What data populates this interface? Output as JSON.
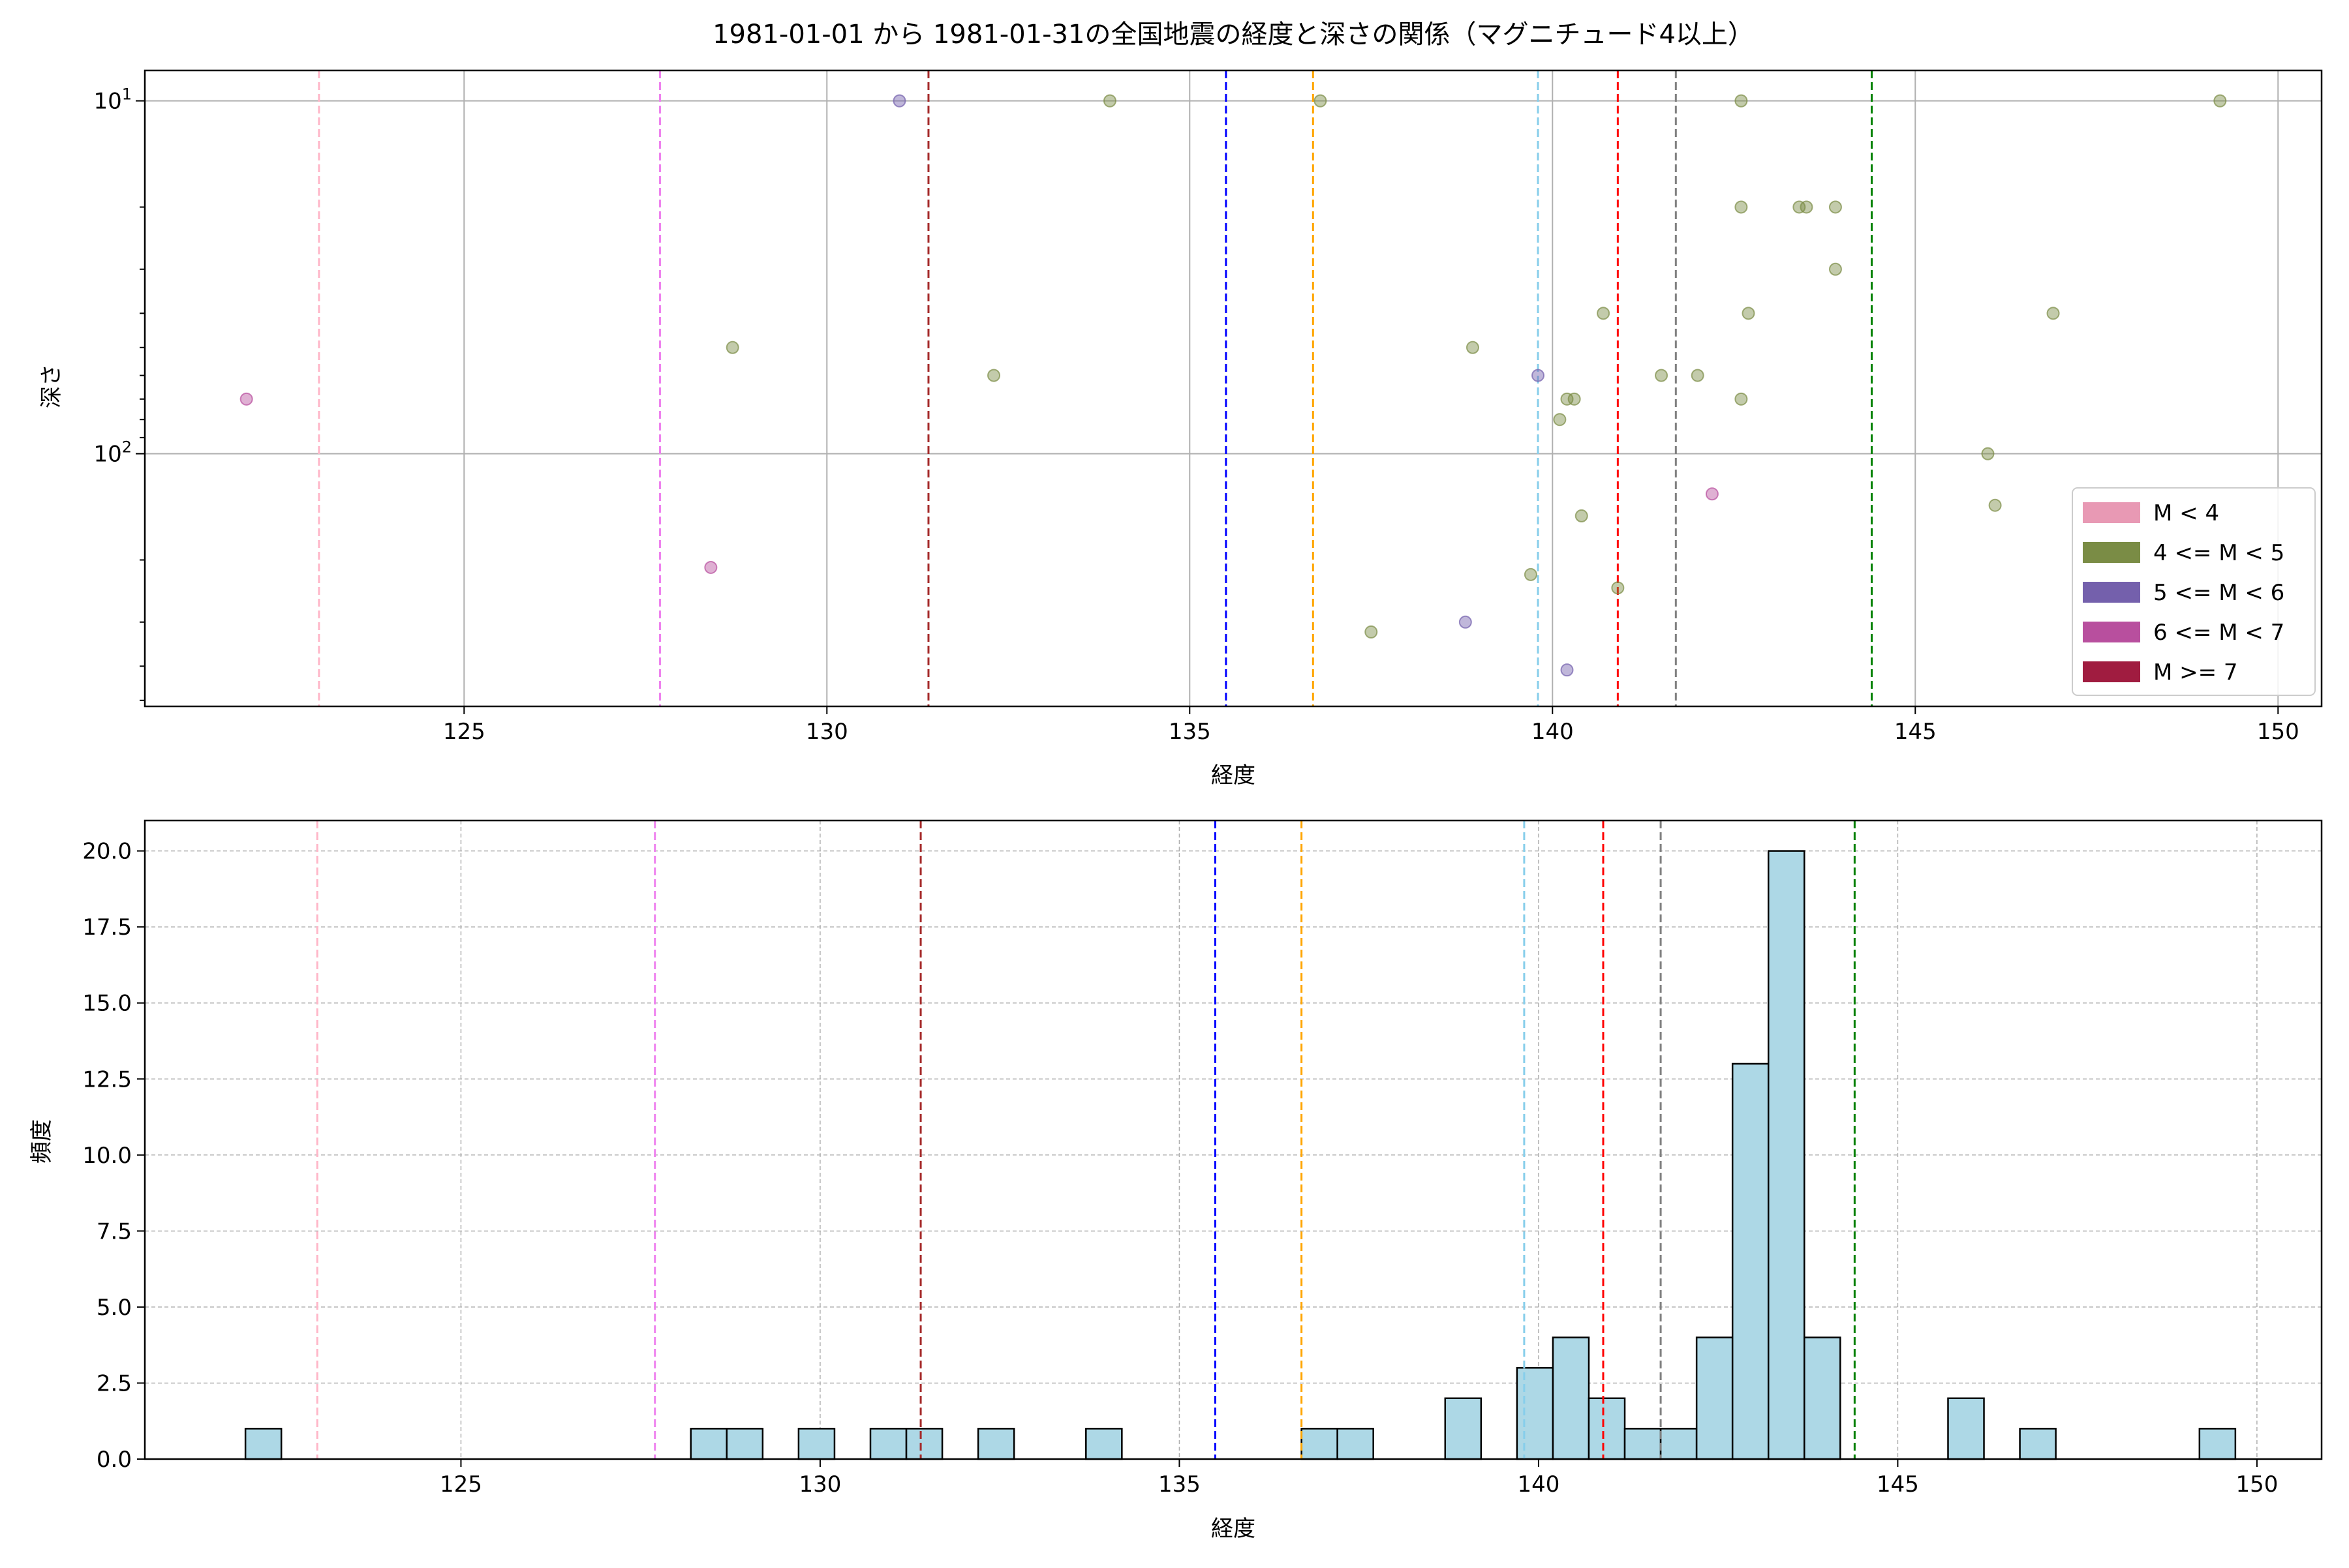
{
  "title": "1981-01-01 から 1981-01-31の全国地震の経度と深さの関係（マグニチュード4以上）",
  "chart_data": [
    {
      "type": "scatter",
      "title": "1981-01-01 から 1981-01-31の全国地震の経度と深さの関係（マグニチュード4以上）",
      "xlabel": "経度",
      "ylabel": "深さ",
      "xlim": [
        120.6,
        150.6
      ],
      "ylim": [
        520,
        8.2
      ],
      "yscale": "log",
      "y_inverted": true,
      "xticks": [
        125,
        130,
        135,
        140,
        145,
        150
      ],
      "yticks": [
        {
          "value": 10,
          "base": "10",
          "exp": "1"
        },
        {
          "value": 100,
          "base": "10",
          "exp": "2"
        }
      ],
      "grid": true,
      "legend": {
        "placement": "lower right",
        "entries": [
          {
            "label": "M < 4",
            "color": "#e899b4"
          },
          {
            "label": "4 <= M < 5",
            "color": "#7a8c45"
          },
          {
            "label": "5 <= M < 6",
            "color": "#7460ac"
          },
          {
            "label": "6 <= M < 7",
            "color": "#b84f9e"
          },
          {
            "label": "M >= 7",
            "color": "#a01c40"
          }
        ]
      },
      "reference_lines": [
        {
          "x": 123.0,
          "color": "#ffb6c8"
        },
        {
          "x": 127.7,
          "color": "#ee82ee"
        },
        {
          "x": 131.4,
          "color": "#a52a2a"
        },
        {
          "x": 135.5,
          "color": "#0000ff"
        },
        {
          "x": 136.7,
          "color": "#ffa500"
        },
        {
          "x": 139.8,
          "color": "#87ceeb"
        },
        {
          "x": 140.9,
          "color": "#ff0000"
        },
        {
          "x": 141.7,
          "color": "#808080"
        },
        {
          "x": 144.4,
          "color": "#008000"
        }
      ],
      "series": [
        {
          "name": "4 <= M < 5",
          "color": "#7a8c45",
          "points": [
            [
              133.9,
              10
            ],
            [
              136.8,
              10
            ],
            [
              142.6,
              10
            ],
            [
              149.2,
              10
            ],
            [
              142.6,
              20
            ],
            [
              143.4,
              20
            ],
            [
              143.5,
              20
            ],
            [
              143.9,
              20
            ],
            [
              143.9,
              30
            ],
            [
              140.7,
              40
            ],
            [
              142.7,
              40
            ],
            [
              146.9,
              40
            ],
            [
              128.7,
              50
            ],
            [
              138.9,
              50
            ],
            [
              132.3,
              60
            ],
            [
              141.5,
              60
            ],
            [
              142.0,
              60
            ],
            [
              140.2,
              70
            ],
            [
              140.3,
              70
            ],
            [
              142.6,
              70
            ],
            [
              140.1,
              80
            ],
            [
              146.0,
              100
            ],
            [
              146.1,
              140
            ],
            [
              140.4,
              150
            ],
            [
              139.7,
              220
            ],
            [
              140.9,
              240
            ],
            [
              137.5,
              320
            ]
          ]
        },
        {
          "name": "5 <= M < 6",
          "color": "#7460ac",
          "points": [
            [
              131.0,
              10
            ],
            [
              139.8,
              60
            ],
            [
              138.8,
              300
            ],
            [
              140.2,
              410
            ]
          ]
        },
        {
          "name": "6 <= M < 7",
          "color": "#b84f9e",
          "points": [
            [
              122.0,
              70
            ],
            [
              142.2,
              130
            ],
            [
              128.4,
              210
            ]
          ]
        }
      ]
    },
    {
      "type": "bar",
      "xlabel": "経度",
      "ylabel": "頻度",
      "xlim": [
        120.6,
        150.9
      ],
      "ylim": [
        0,
        21
      ],
      "xticks": [
        125,
        130,
        135,
        140,
        145,
        150
      ],
      "yticks": [
        "0.0",
        "2.5",
        "5.0",
        "7.5",
        "10.0",
        "12.5",
        "15.0",
        "17.5",
        "20.0"
      ],
      "grid": true,
      "bar_color": "#add8e6",
      "bin_width": 0.5,
      "bins": [
        [
          122.0,
          1
        ],
        [
          128.2,
          1
        ],
        [
          128.7,
          1
        ],
        [
          129.7,
          1
        ],
        [
          130.7,
          1
        ],
        [
          131.2,
          1
        ],
        [
          132.2,
          1
        ],
        [
          133.7,
          1
        ],
        [
          136.7,
          1
        ],
        [
          137.2,
          1
        ],
        [
          138.7,
          2
        ],
        [
          139.7,
          3
        ],
        [
          140.2,
          4
        ],
        [
          140.7,
          2
        ],
        [
          141.2,
          1
        ],
        [
          141.7,
          1
        ],
        [
          142.2,
          4
        ],
        [
          142.7,
          13
        ],
        [
          143.2,
          20
        ],
        [
          143.7,
          4
        ],
        [
          145.7,
          2
        ],
        [
          146.7,
          1
        ],
        [
          149.2,
          1
        ]
      ],
      "reference_lines": [
        {
          "x": 123.0,
          "color": "#ffb6c8"
        },
        {
          "x": 127.7,
          "color": "#ee82ee"
        },
        {
          "x": 131.4,
          "color": "#a52a2a"
        },
        {
          "x": 135.5,
          "color": "#0000ff"
        },
        {
          "x": 136.7,
          "color": "#ffa500"
        },
        {
          "x": 139.8,
          "color": "#87ceeb"
        },
        {
          "x": 140.9,
          "color": "#ff0000"
        },
        {
          "x": 141.7,
          "color": "#808080"
        },
        {
          "x": 144.4,
          "color": "#008000"
        }
      ]
    }
  ]
}
